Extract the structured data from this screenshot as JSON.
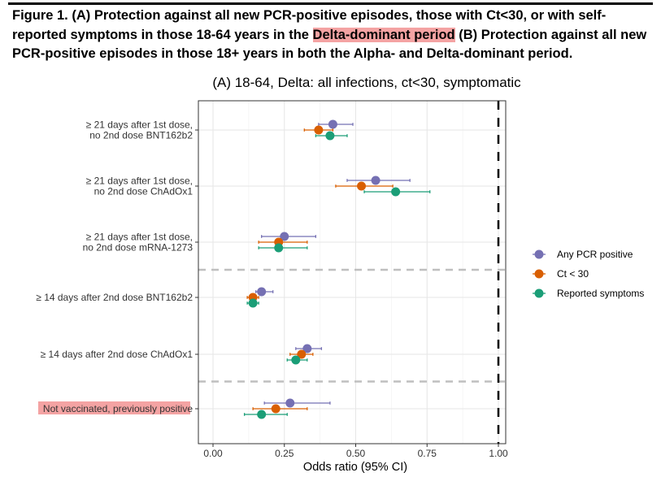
{
  "caption": {
    "part1": "Figure 1. (A) Protection against all new PCR-positive episodes, those with Ct<30, or with self-reported symptoms in those 18-64 years in the ",
    "highlight": "Delta-dominant period",
    "part2": " (B) Protection against all new PCR-positive episodes in those 18+ years in both the Alpha- and Delta-dominant period."
  },
  "colors": {
    "any_pcr": "#7570b3",
    "ct30": "#d95f02",
    "symptoms": "#1b9e77",
    "highlight": "#f4a3a3"
  },
  "chart_data": {
    "type": "scatter",
    "subtype": "forest-plot",
    "title": "(A) 18-64, Delta: all infections, ct<30, symptomatic",
    "xlabel": "Odds ratio (95% CI)",
    "ylabel": "",
    "xlim": [
      -0.05,
      1.02
    ],
    "xticks": [
      "0.00",
      "0.25",
      "0.50",
      "0.75",
      "1.00"
    ],
    "xtick_values": [
      0,
      0.25,
      0.5,
      0.75,
      1.0
    ],
    "reference_line": 1.0,
    "group_separators_after": [
      3,
      5
    ],
    "grid": true,
    "legend_position": "right",
    "categories": [
      [
        "≥ 21 days after 1st dose,",
        "no 2nd dose BNT162b2"
      ],
      [
        "≥ 21 days after 1st dose,",
        "no 2nd dose ChAdOx1"
      ],
      [
        "≥ 21 days after 1st dose,",
        "no 2nd dose mRNA-1273"
      ],
      [
        "≥ 14 days after 2nd dose BNT162b2"
      ],
      [
        "≥ 14 days after 2nd dose ChAdOx1"
      ],
      [
        "Not vaccinated, previously positive"
      ]
    ],
    "highlighted_category": 5,
    "series": [
      {
        "name": "Any PCR positive",
        "color_key": "any_pcr",
        "estimate": [
          0.42,
          0.57,
          0.25,
          0.17,
          0.33,
          0.27
        ],
        "lower": [
          0.37,
          0.47,
          0.17,
          0.15,
          0.29,
          0.18
        ],
        "upper": [
          0.49,
          0.69,
          0.36,
          0.21,
          0.38,
          0.41
        ]
      },
      {
        "name": "Ct < 30",
        "color_key": "ct30",
        "estimate": [
          0.37,
          0.52,
          0.23,
          0.14,
          0.31,
          0.22
        ],
        "lower": [
          0.32,
          0.43,
          0.16,
          0.12,
          0.27,
          0.14
        ],
        "upper": [
          0.42,
          0.63,
          0.33,
          0.16,
          0.35,
          0.33
        ]
      },
      {
        "name": "Reported symptoms",
        "color_key": "symptoms",
        "estimate": [
          0.41,
          0.64,
          0.23,
          0.14,
          0.29,
          0.17
        ],
        "lower": [
          0.36,
          0.53,
          0.16,
          0.12,
          0.26,
          0.11
        ],
        "upper": [
          0.47,
          0.76,
          0.33,
          0.16,
          0.33,
          0.26
        ]
      }
    ]
  }
}
